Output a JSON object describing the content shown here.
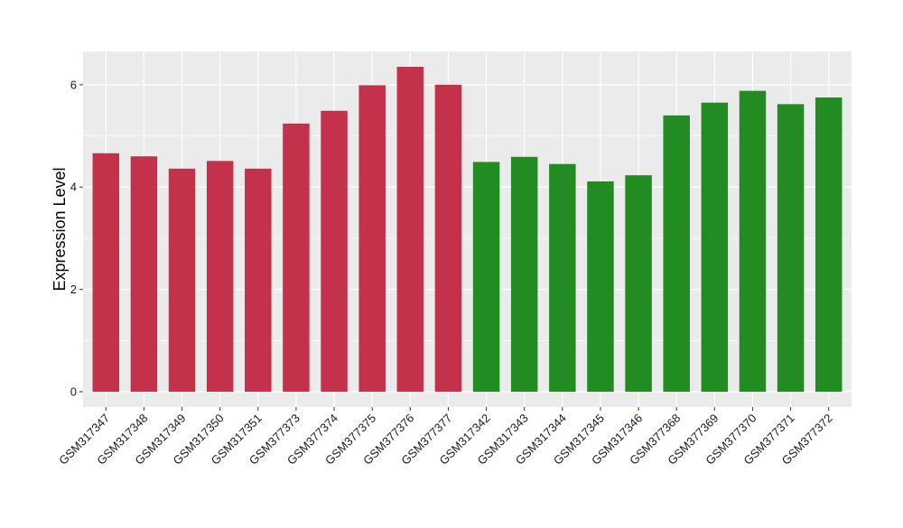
{
  "chart_data": {
    "type": "bar",
    "title": "",
    "xlabel": "",
    "ylabel": "Expression Level",
    "categories": [
      "GSM317347",
      "GSM317348",
      "GSM317349",
      "GSM317350",
      "GSM317351",
      "GSM377373",
      "GSM377374",
      "GSM377375",
      "GSM377376",
      "GSM377377",
      "GSM317342",
      "GSM317343",
      "GSM317344",
      "GSM317345",
      "GSM317346",
      "GSM377368",
      "GSM377369",
      "GSM377370",
      "GSM377371",
      "GSM377372"
    ],
    "values": [
      4.66,
      4.6,
      4.36,
      4.51,
      4.36,
      5.24,
      5.49,
      5.99,
      6.35,
      6.0,
      4.49,
      4.59,
      4.45,
      4.11,
      4.23,
      5.4,
      5.65,
      5.88,
      5.62,
      5.75
    ],
    "groups": [
      0,
      0,
      0,
      0,
      0,
      0,
      0,
      0,
      0,
      0,
      1,
      1,
      1,
      1,
      1,
      1,
      1,
      1,
      1,
      1
    ],
    "group_colors": [
      "#c4314b",
      "#228b22"
    ],
    "ylim": [
      -0.3,
      6.65
    ],
    "yticks": [
      0,
      2,
      4,
      6
    ],
    "grid": true,
    "panel_background": "#ebebeb",
    "grid_color": "#ffffff"
  }
}
